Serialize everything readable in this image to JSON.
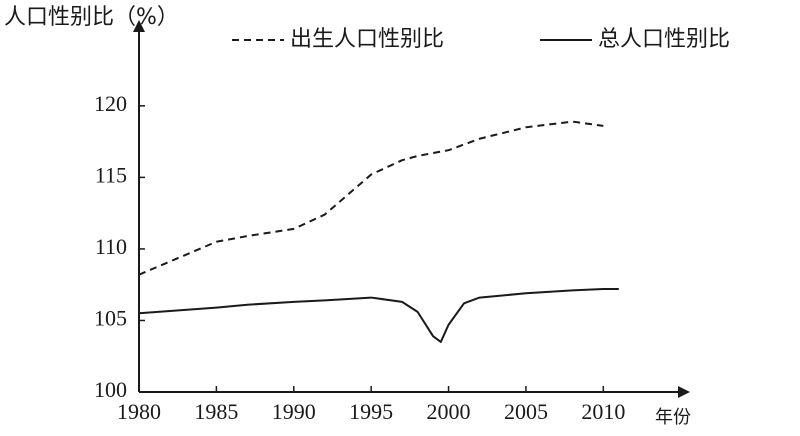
{
  "chart_data": {
    "type": "line",
    "y_label": "人口性别比（%）",
    "x_label": "年份",
    "x": [
      1980,
      1985,
      1987,
      1990,
      1992,
      1995,
      1997,
      1998,
      1999,
      1999.5,
      2000,
      2001,
      2002,
      2005,
      2008,
      2010,
      2011
    ],
    "series": [
      {
        "name": "出生人口性别比",
        "color": "#1a1a1a",
        "dash": true,
        "values": [
          108.2,
          110.5,
          110.9,
          111.4,
          112.4,
          115.2,
          116.2,
          116.5,
          116.7,
          116.8,
          116.9,
          117.3,
          117.7,
          118.5,
          118.9,
          118.6,
          null
        ]
      },
      {
        "name": "总人口性别比",
        "color": "#1a1a1a",
        "dash": false,
        "values": [
          105.5,
          105.9,
          106.1,
          106.3,
          106.4,
          106.6,
          106.3,
          105.6,
          103.9,
          103.5,
          104.7,
          106.2,
          106.6,
          106.9,
          107.1,
          107.2,
          107.2
        ]
      }
    ],
    "xlim": [
      1980,
      2015.6
    ],
    "ylim": [
      100,
      126
    ],
    "xticks": [
      1980,
      1985,
      1990,
      1995,
      2000,
      2005,
      2010
    ],
    "yticks": [
      100,
      105,
      110,
      115,
      120
    ],
    "grid": false
  }
}
